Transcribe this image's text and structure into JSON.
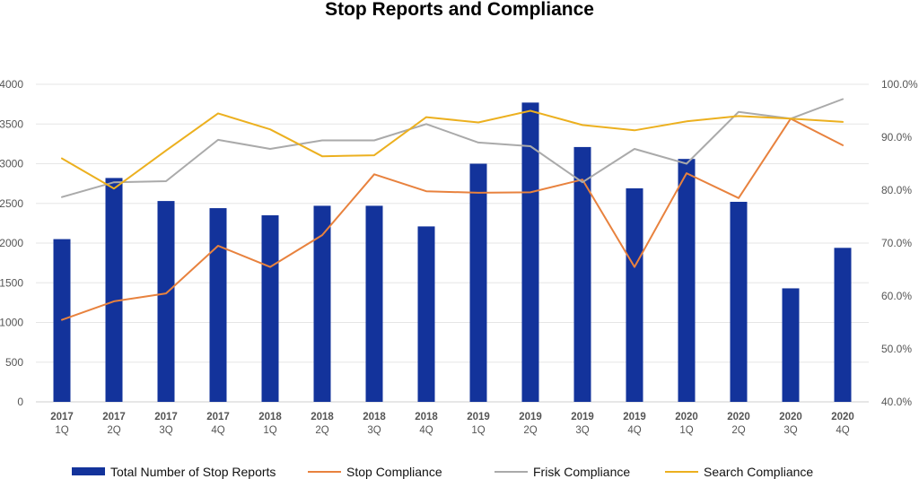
{
  "chart_data": {
    "type": "bar",
    "title": "Stop Reports and Compliance",
    "categories": [
      [
        "2017",
        "1Q"
      ],
      [
        "2017",
        "2Q"
      ],
      [
        "2017",
        "3Q"
      ],
      [
        "2017",
        "4Q"
      ],
      [
        "2018",
        "1Q"
      ],
      [
        "2018",
        "2Q"
      ],
      [
        "2018",
        "3Q"
      ],
      [
        "2018",
        "4Q"
      ],
      [
        "2019",
        "1Q"
      ],
      [
        "2019",
        "2Q"
      ],
      [
        "2019",
        "3Q"
      ],
      [
        "2019",
        "4Q"
      ],
      [
        "2020",
        "1Q"
      ],
      [
        "2020",
        "2Q"
      ],
      [
        "2020",
        "3Q"
      ],
      [
        "2020",
        "4Q"
      ]
    ],
    "y_left": {
      "min": 0,
      "max": 4000,
      "step": 500,
      "ticks": [
        "0",
        "500",
        "1000",
        "1500",
        "2000",
        "2500",
        "3000",
        "3500",
        "4000"
      ]
    },
    "y_right": {
      "min": 40,
      "max": 100,
      "step": 10,
      "ticks": [
        "40.0%",
        "50.0%",
        "60.0%",
        "70.0%",
        "80.0%",
        "90.0%",
        "100.0%"
      ]
    },
    "grid": true,
    "legend_position": "bottom",
    "series": [
      {
        "name": "Total Number of Stop Reports",
        "kind": "bar",
        "axis": "left",
        "color": "#13339b",
        "values": [
          2050,
          2820,
          2530,
          2440,
          2350,
          2470,
          2470,
          2210,
          3000,
          3770,
          3210,
          2690,
          3060,
          2520,
          1430,
          1940
        ]
      },
      {
        "name": "Stop Compliance",
        "kind": "line",
        "axis": "right",
        "color": "#e8823e",
        "values": [
          55.5,
          59.0,
          60.5,
          69.5,
          65.5,
          71.5,
          83.0,
          79.8,
          79.5,
          79.6,
          82.0,
          65.5,
          83.2,
          78.5,
          93.5,
          88.5
        ]
      },
      {
        "name": "Frisk Compliance",
        "kind": "line",
        "axis": "right",
        "color": "#aaaaaa",
        "values": [
          78.7,
          81.5,
          81.7,
          89.5,
          87.8,
          89.4,
          89.4,
          92.5,
          89.0,
          88.3,
          81.5,
          87.8,
          85.0,
          94.8,
          93.5,
          97.2
        ]
      },
      {
        "name": "Search Compliance",
        "kind": "line",
        "axis": "right",
        "color": "#ecb01f",
        "values": [
          86.0,
          80.3,
          87.5,
          94.5,
          91.5,
          86.4,
          86.6,
          93.8,
          92.8,
          95.0,
          92.3,
          91.3,
          93.0,
          94.0,
          93.5,
          92.9
        ]
      }
    ]
  }
}
